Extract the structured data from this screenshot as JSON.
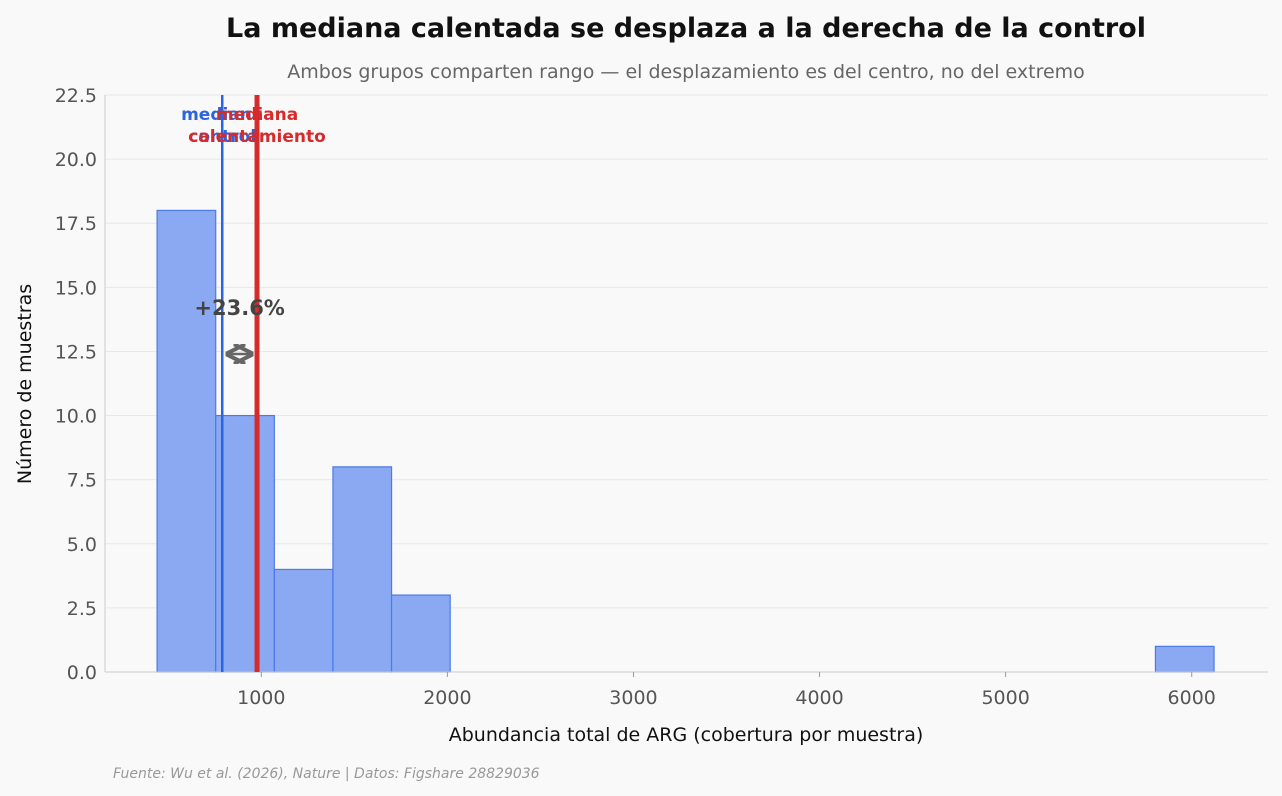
{
  "chart_data": {
    "type": "histogram",
    "title": "La mediana calentada se desplaza a la derecha de la control",
    "subtitle": "Ambos grupos comparten rango — el desplazamiento es del centro, no del extremo",
    "xlabel": "Abundancia total de ARG (cobertura por muestra)",
    "ylabel": "Número de muestras",
    "xlim": [
      160,
      6410
    ],
    "ylim": [
      0,
      22.5
    ],
    "x_ticks": [
      1000,
      2000,
      3000,
      4000,
      5000,
      6000
    ],
    "y_ticks": [
      "0.0",
      "2.5",
      "5.0",
      "7.5",
      "10.0",
      "12.5",
      "15.0",
      "17.5",
      "20.0",
      "22.5"
    ],
    "grid": true,
    "bins": [
      {
        "x0": 440,
        "x1": 755,
        "count": 18
      },
      {
        "x0": 755,
        "x1": 1070,
        "count": 10
      },
      {
        "x0": 1070,
        "x1": 1385,
        "count": 4
      },
      {
        "x0": 1385,
        "x1": 1700,
        "count": 8
      },
      {
        "x0": 1700,
        "x1": 2015,
        "count": 3
      },
      {
        "x0": 5805,
        "x1": 6120,
        "count": 1
      }
    ],
    "bar_color": "#8aa9f2",
    "bar_edge_color": "#4a7ae8",
    "medians": [
      {
        "name": "mediana control",
        "lines": [
          "mediana",
          "control"
        ],
        "value": 790,
        "color": "#2b63e0"
      },
      {
        "name": "mediana calentamiento",
        "lines": [
          "mediana",
          "calentamiento"
        ],
        "value": 977,
        "color": "#d62b2b"
      }
    ],
    "annotation": {
      "text": "+23.6%",
      "y": 12.4,
      "color": "#666666"
    },
    "source": "Fuente: Wu et al. (2026), Nature | Datos: Figshare 28829036"
  }
}
